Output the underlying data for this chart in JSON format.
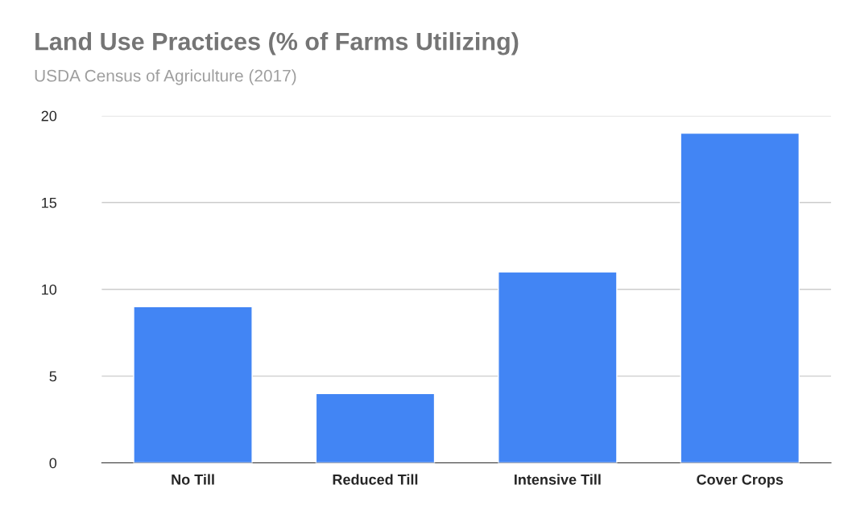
{
  "chart_data": {
    "type": "bar",
    "title": "Land Use Practices (% of Farms Utilizing)",
    "subtitle": "USDA Census of Agriculture (2017)",
    "categories": [
      "No Till",
      "Reduced Till",
      "Intensive Till",
      "Cover Crops"
    ],
    "values": [
      9,
      4,
      11,
      19
    ],
    "color": "#4285f4",
    "ylim": [
      0,
      20
    ],
    "yticks": [
      0,
      5,
      10,
      15,
      20
    ],
    "grid": "y"
  }
}
